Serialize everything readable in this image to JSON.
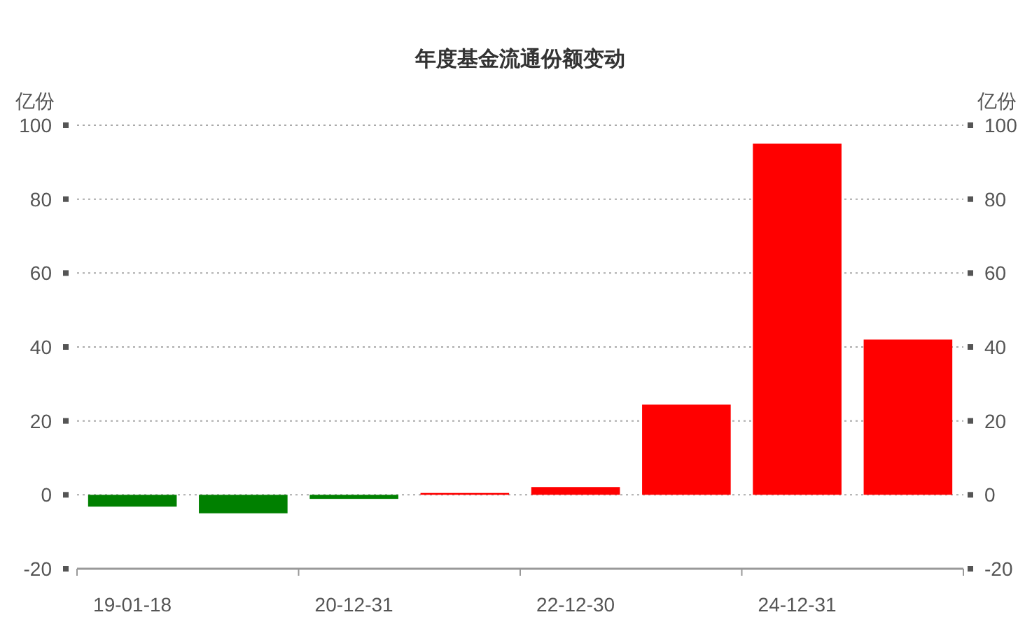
{
  "chart_data": {
    "type": "bar",
    "title": "年度基金流通份额变动",
    "categories": [
      "19-01-18",
      null,
      "20-12-31",
      null,
      "22-12-30",
      null,
      "24-12-31",
      null
    ],
    "values": [
      -3.2,
      -5,
      -1.1,
      0.5,
      2.1,
      24.4,
      95,
      42
    ],
    "colors": [
      "#008000",
      "#008000",
      "#008000",
      "#ff0000",
      "#ff0000",
      "#ff0000",
      "#ff0000",
      "#ff0000"
    ],
    "ylabel": "亿份",
    "y2label": "亿份",
    "ylim": [
      -20,
      100
    ],
    "yticks": [
      -20,
      0,
      20,
      40,
      60,
      80,
      100
    ],
    "y2lim": [
      -20,
      100
    ],
    "y2ticks": [
      -20,
      0,
      20,
      40,
      60,
      80,
      100
    ],
    "grid": "y"
  }
}
